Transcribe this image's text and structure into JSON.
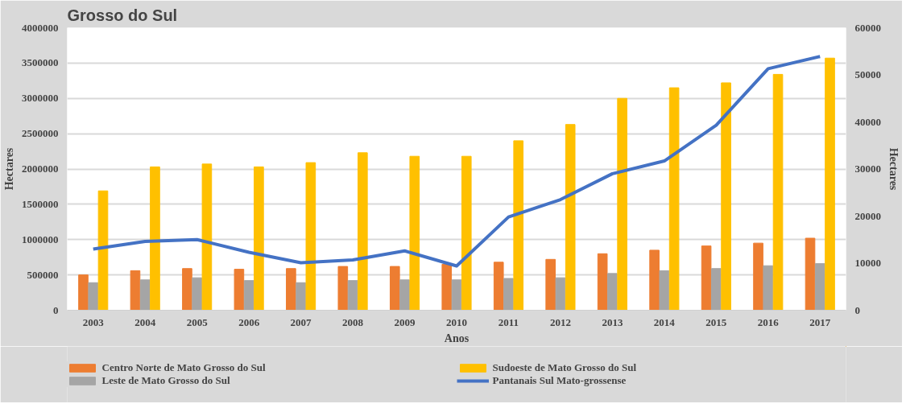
{
  "chart_data": {
    "type": "bar",
    "title": "Grosso do Sul",
    "xlabel": "Anos",
    "ylabel": "Hectares",
    "y2label": "Hectares",
    "categories": [
      "2003",
      "2004",
      "2005",
      "2006",
      "2007",
      "2008",
      "2009",
      "2010",
      "2011",
      "2012",
      "2013",
      "2014",
      "2015",
      "2016",
      "2017"
    ],
    "series": [
      {
        "name": "Centro Norte de Mato Grosso do Sul",
        "color": "#ed7d31",
        "values": [
          500000,
          560000,
          590000,
          580000,
          590000,
          620000,
          620000,
          650000,
          680000,
          720000,
          800000,
          850000,
          910000,
          950000,
          1020000
        ]
      },
      {
        "name": "Leste de Mato Grosso do Sul",
        "color": "#a5a5a5",
        "values": [
          390000,
          430000,
          460000,
          420000,
          390000,
          420000,
          430000,
          430000,
          450000,
          460000,
          520000,
          560000,
          590000,
          630000,
          660000
        ]
      },
      {
        "name": "Sudoeste de Mato Grosso do Sul",
        "color": "#ffc000",
        "values": [
          1690000,
          2030000,
          2070000,
          2030000,
          2090000,
          2230000,
          2180000,
          2180000,
          2400000,
          2630000,
          3000000,
          3150000,
          3220000,
          3340000,
          3570000
        ]
      },
      {
        "name": "Pantanais Sul Mato-grossense",
        "color": "#4472c4",
        "type": "line",
        "axis": "y2",
        "values": [
          13000,
          14600,
          15000,
          12300,
          10100,
          10700,
          12600,
          9400,
          19800,
          23500,
          29000,
          31700,
          39300,
          51300,
          53900
        ]
      }
    ],
    "ylim": [
      0,
      4000000
    ],
    "yticks": [
      0,
      500000,
      1000000,
      1500000,
      2000000,
      2500000,
      3000000,
      3500000,
      4000000
    ],
    "y2lim": [
      0,
      60000
    ],
    "y2ticks": [
      0,
      10000,
      20000,
      30000,
      40000,
      50000,
      60000
    ],
    "grid": "y",
    "legend": "bottom",
    "marker": "none",
    "line_style": "solid"
  }
}
